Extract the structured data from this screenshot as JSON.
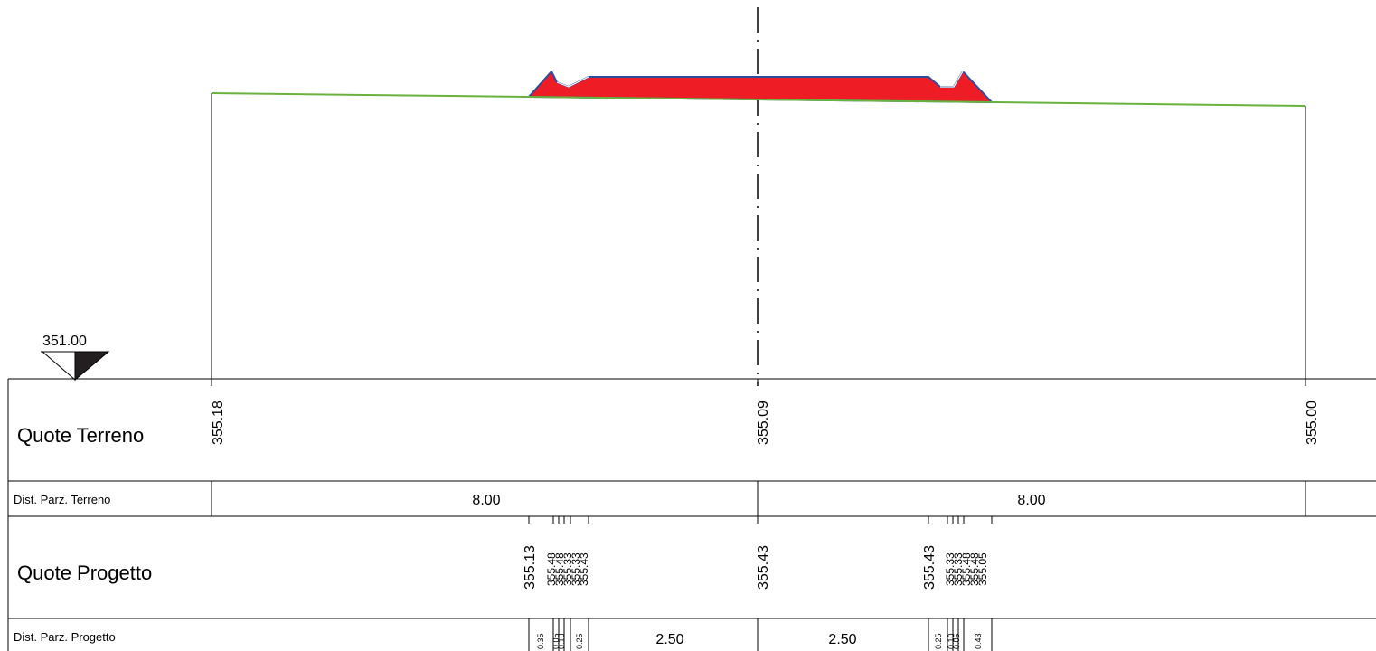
{
  "datum": {
    "value": "351.00"
  },
  "rows": {
    "ground_elevations": {
      "label": "Quote Terreno",
      "values": [
        "355.18",
        "355.09",
        "355.00"
      ]
    },
    "ground_distances": {
      "label": "Dist. Parz. Terreno",
      "values": [
        "8.00",
        "8.00"
      ]
    },
    "design_elevations": {
      "label": "Quote Progetto",
      "center": "355.43",
      "left_edge": "355.13",
      "left_group": [
        "355.48",
        "355.48",
        "355.33",
        "355.33",
        "355.43"
      ],
      "right_edge": "355.43",
      "right_group": [
        "355.33",
        "355.33",
        "355.48",
        "355.48",
        "355.05"
      ]
    },
    "design_distances": {
      "label": "Dist. Parz. Progetto",
      "left_small": [
        "0.35",
        "0.05",
        "0.10",
        "0.25"
      ],
      "left_main": "2.50",
      "right_main": "2.50",
      "right_small": [
        "0.25",
        "0.10",
        "0.05",
        "0.43"
      ]
    }
  },
  "colors": {
    "ground_line": "#6ab23e",
    "embankment_fill": "#ee1c24",
    "embankment_outline": "#2b4ea2",
    "line": "#000000"
  }
}
